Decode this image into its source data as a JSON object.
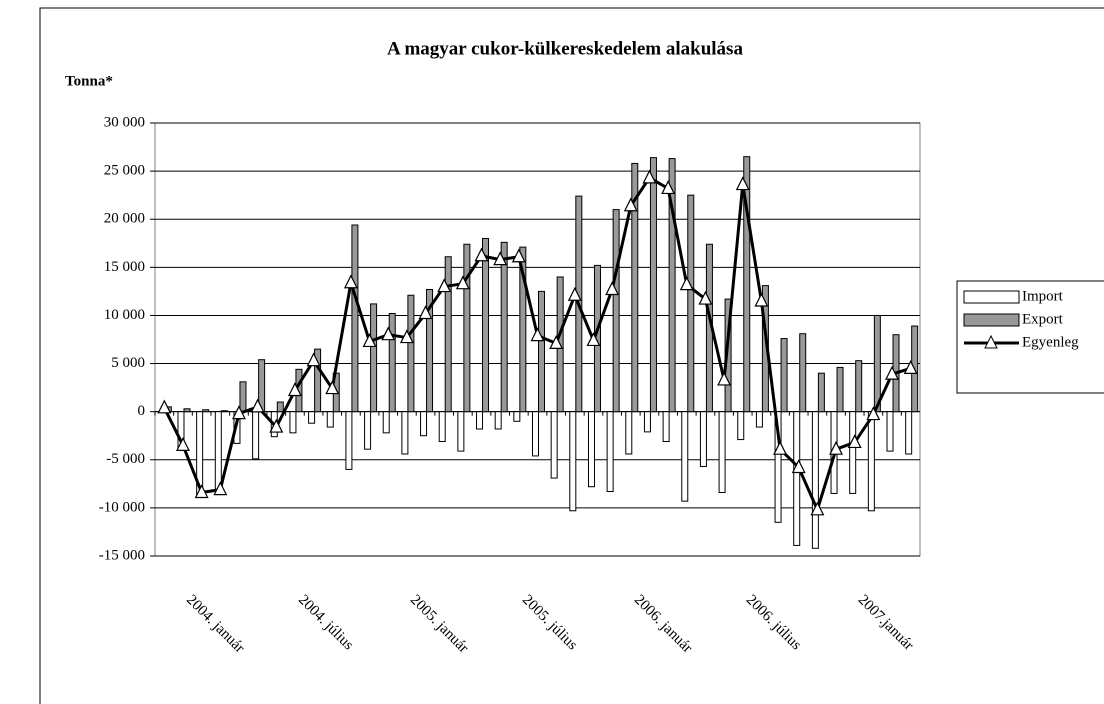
{
  "chart_data": {
    "type": "bar-line",
    "title": "A magyar cukor-külkereskedelem alakulása",
    "y_label": "Tonna*",
    "categories": [
      "2004. január",
      null,
      null,
      null,
      null,
      null,
      "2004. július",
      null,
      null,
      null,
      null,
      null,
      "2005. január",
      null,
      null,
      null,
      null,
      null,
      "2005. július",
      null,
      null,
      null,
      null,
      null,
      "2006. január",
      null,
      null,
      null,
      null,
      null,
      "2006. július",
      null,
      null,
      null,
      null,
      null,
      "2007.január",
      null,
      null,
      null,
      null
    ],
    "series": [
      {
        "name": "Import",
        "kind": "bar",
        "color": "#ffffff",
        "values": [
          -100,
          -3800,
          -8600,
          -8200,
          -3300,
          -4900,
          -2600,
          -2200,
          -1200,
          -1600,
          -6000,
          -3900,
          -2200,
          -4400,
          -2500,
          -3100,
          -4100,
          -1800,
          -1800,
          -1000,
          -4600,
          -6900,
          -10300,
          -7800,
          -8300,
          -4400,
          -2100,
          -3100,
          -9300,
          -5700,
          -8400,
          -2900,
          -1600,
          -11500,
          -13900,
          -14200,
          -8500,
          -8500,
          -10300,
          -4100,
          -4400
        ]
      },
      {
        "name": "Export",
        "kind": "bar",
        "color": "#999999",
        "values": [
          500,
          300,
          200,
          100,
          3100,
          5400,
          1000,
          4400,
          6500,
          4000,
          19400,
          11200,
          10200,
          12100,
          12700,
          16100,
          17400,
          18000,
          17600,
          17100,
          12500,
          14000,
          22400,
          15200,
          21000,
          25800,
          26400,
          26300,
          22500,
          17400,
          11700,
          26500,
          13100,
          7600,
          8100,
          4000,
          4600,
          5300,
          10000,
          8000,
          8900
        ]
      },
      {
        "name": "Egyenleg",
        "kind": "line",
        "color": "#000000",
        "values": [
          400,
          -3500,
          -8400,
          -8100,
          -200,
          500,
          -1600,
          2200,
          5300,
          2400,
          13400,
          7300,
          8000,
          7700,
          10200,
          13000,
          13300,
          16200,
          15800,
          16100,
          7900,
          7100,
          12100,
          7400,
          12700,
          21400,
          24300,
          23200,
          13200,
          11700,
          3300,
          23600,
          11500,
          -3900,
          -5800,
          -10200,
          -3900,
          -3200,
          -300,
          3900,
          4500
        ]
      }
    ],
    "ylim": [
      -15000,
      30000
    ],
    "yticks": [
      {
        "value": -15000,
        "label": "-15 000"
      },
      {
        "value": -10000,
        "label": "-10 000"
      },
      {
        "value": -5000,
        "label": "-5 000"
      },
      0,
      {
        "value": 5000,
        "label": "5 000"
      },
      {
        "value": 10000,
        "label": "10 000"
      },
      {
        "value": 15000,
        "label": "15 000"
      },
      {
        "value": 20000,
        "label": "20 000"
      },
      {
        "value": 25000,
        "label": "25 000"
      },
      {
        "value": 30000,
        "label": "30 000"
      }
    ],
    "grid": true,
    "legend": "right"
  }
}
